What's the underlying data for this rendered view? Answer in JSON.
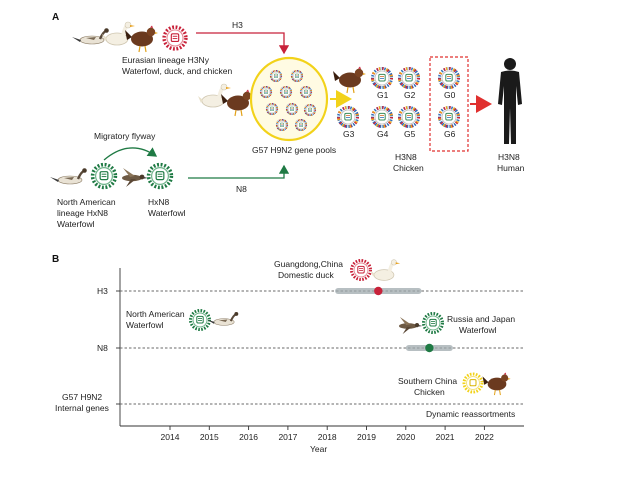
{
  "panel_a": {
    "label": "A",
    "h3_arrow_label": "H3",
    "eurasian_label_line1": "Eurasian lineage H3Ny",
    "eurasian_label_line2": "Waterfowl, duck, and chicken",
    "migratory_label": "Migratory flyway",
    "na_label_line1": "North American",
    "na_label_line2": "lineage HxN8",
    "na_label_line3": "Waterfowl",
    "hxn8_label_line1": "HxN8",
    "hxn8_label_line2": "Waterfowl",
    "n8_arrow_label": "N8",
    "gene_pool_label": "G57 H9N2 gene pools",
    "genotypes": [
      "G1",
      "G2",
      "G0",
      "G3",
      "G4",
      "G5",
      "G6"
    ],
    "chicken_label_line1": "H3N8",
    "chicken_label_line2": "Chicken",
    "human_label_line1": "H3N8",
    "human_label_line2": "Human"
  },
  "panel_b": {
    "label": "B",
    "x_axis_label": "Year",
    "years": [
      "2014",
      "2015",
      "2016",
      "2017",
      "2018",
      "2019",
      "2020",
      "2021",
      "2022"
    ],
    "rows": [
      {
        "name": "H3",
        "label": "H3"
      },
      {
        "name": "N8",
        "label": "N8"
      },
      {
        "name": "internal",
        "label_line1": "G57 H9N2",
        "label_line2": "Internal genes"
      }
    ],
    "annotations": {
      "guangdong_line1": "Guangdong,China",
      "guangdong_line2": "Domestic duck",
      "north_american_line1": "North American",
      "north_american_line2": "Waterfowl",
      "russia_line1": "Russia and Japan",
      "russia_line2": "Waterfowl",
      "southern_line1": "Southern China",
      "southern_line2": "Chicken",
      "dynamic": "Dynamic reassortments"
    },
    "events": [
      {
        "row": "H3",
        "year": 2019.3,
        "range": [
          2018.2,
          2020.4
        ],
        "color": "#c8223a"
      },
      {
        "row": "N8",
        "year": 2020.6,
        "range": [
          2020.0,
          2021.2
        ],
        "color": "#1f7a44"
      }
    ]
  },
  "colors": {
    "h3_red": "#c8223a",
    "n8_green": "#1f7a44",
    "yellow": "#f2d21a",
    "dashed_red": "#e0302f",
    "band_gray": "#9fa9ae"
  }
}
